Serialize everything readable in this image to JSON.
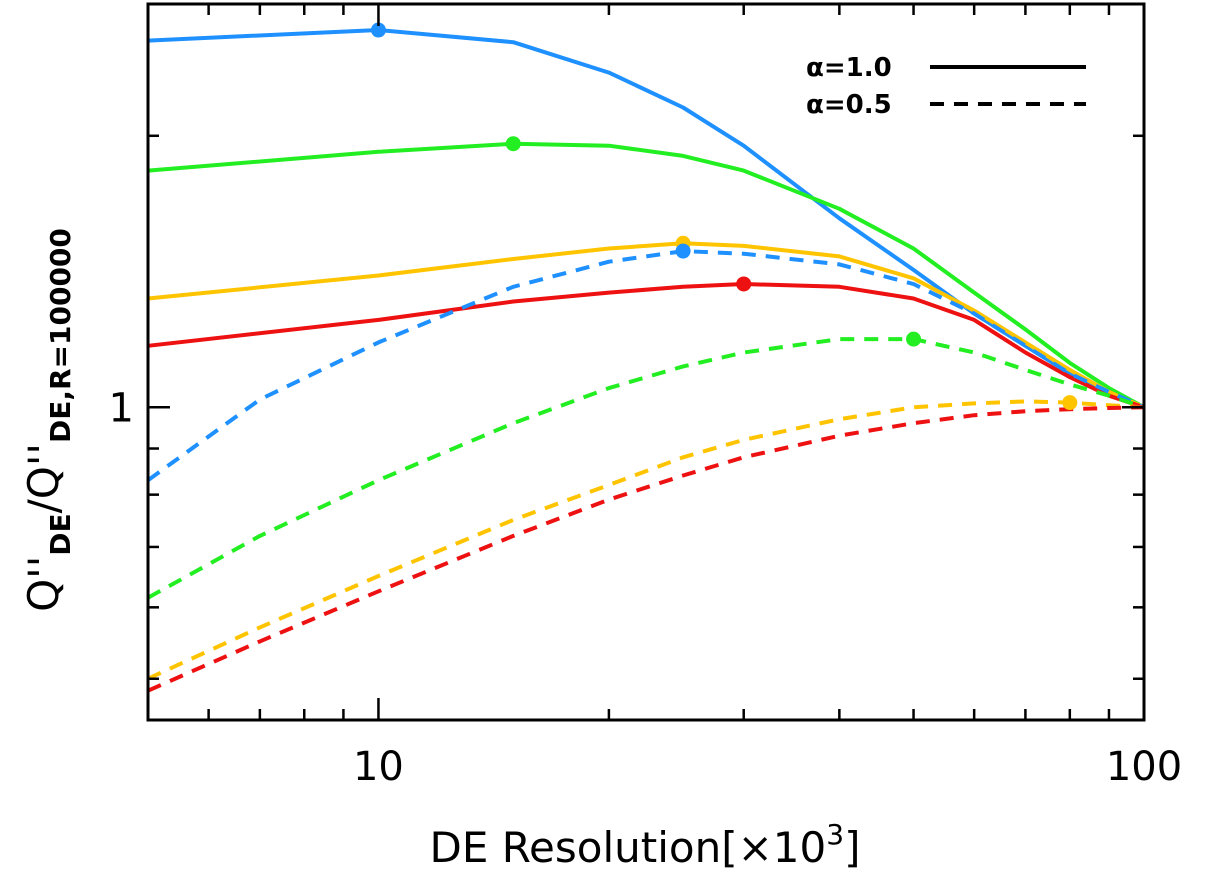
{
  "chart_data": {
    "type": "line",
    "xlabel": "DE Resolution[×10",
    "xlabel_sup": "3",
    "xlabel_end": "]",
    "ylabel_main": "Q''",
    "ylabel_sub1": "DE",
    "ylabel_mid": "/Q''",
    "ylabel_sub2": "DE,R=100000",
    "xscale": "log",
    "yscale": "log",
    "xlim": [
      5,
      100
    ],
    "ylim": [
      0.45,
      2.8
    ],
    "x_tick_labels": [
      {
        "value": 10,
        "label": "10"
      },
      {
        "value": 100,
        "label": "100"
      }
    ],
    "y_tick_labels": [
      {
        "value": 1,
        "label": "1"
      }
    ],
    "legend": {
      "placement": "top-right",
      "entries": [
        {
          "label": "α=1.0",
          "style": "solid"
        },
        {
          "label": "α=0.5",
          "style": "dashed"
        }
      ]
    },
    "series": [
      {
        "color": "#1E90FF",
        "style": "solid",
        "x": [
          5,
          10,
          15,
          20,
          25,
          30,
          40,
          50,
          60,
          70,
          80,
          90,
          100
        ],
        "y": [
          2.55,
          2.62,
          2.54,
          2.35,
          2.15,
          1.95,
          1.62,
          1.42,
          1.27,
          1.17,
          1.09,
          1.04,
          1.0
        ],
        "marker": {
          "x": 10,
          "y": 2.62
        }
      },
      {
        "color": "#22EE22",
        "style": "solid",
        "x": [
          5,
          10,
          15,
          20,
          25,
          30,
          40,
          50,
          60,
          70,
          80,
          90,
          100
        ],
        "y": [
          1.83,
          1.92,
          1.96,
          1.95,
          1.9,
          1.83,
          1.66,
          1.5,
          1.34,
          1.22,
          1.12,
          1.05,
          1.0
        ],
        "marker": {
          "x": 15,
          "y": 1.96
        }
      },
      {
        "color": "#FFC400",
        "style": "solid",
        "x": [
          5,
          10,
          15,
          20,
          25,
          30,
          40,
          50,
          60,
          70,
          80,
          90,
          100
        ],
        "y": [
          1.32,
          1.4,
          1.46,
          1.5,
          1.52,
          1.51,
          1.47,
          1.39,
          1.28,
          1.18,
          1.1,
          1.04,
          1.0
        ],
        "marker": {
          "x": 25,
          "y": 1.52
        }
      },
      {
        "color": "#EE1111",
        "style": "solid",
        "x": [
          5,
          10,
          15,
          20,
          25,
          30,
          40,
          50,
          60,
          70,
          80,
          90,
          100
        ],
        "y": [
          1.17,
          1.25,
          1.31,
          1.34,
          1.36,
          1.37,
          1.36,
          1.32,
          1.25,
          1.15,
          1.08,
          1.03,
          1.0
        ],
        "marker": {
          "x": 30,
          "y": 1.37
        }
      },
      {
        "color": "#1E90FF",
        "style": "dashed",
        "x": [
          5,
          7,
          10,
          15,
          20,
          25,
          30,
          40,
          50,
          60,
          70,
          80,
          90,
          100
        ],
        "y": [
          0.83,
          1.02,
          1.18,
          1.36,
          1.45,
          1.49,
          1.48,
          1.44,
          1.37,
          1.27,
          1.17,
          1.09,
          1.04,
          1.0
        ],
        "marker": {
          "x": 25,
          "y": 1.49
        }
      },
      {
        "color": "#22EE22",
        "style": "dashed",
        "x": [
          5,
          7,
          10,
          15,
          20,
          25,
          30,
          40,
          50,
          60,
          70,
          80,
          90,
          100
        ],
        "y": [
          0.615,
          0.72,
          0.83,
          0.96,
          1.05,
          1.11,
          1.15,
          1.19,
          1.19,
          1.15,
          1.1,
          1.06,
          1.03,
          1.0
        ],
        "marker": {
          "x": 50,
          "y": 1.19
        }
      },
      {
        "color": "#FFC400",
        "style": "dashed",
        "x": [
          5,
          7,
          10,
          15,
          20,
          25,
          30,
          40,
          50,
          60,
          70,
          80,
          90,
          100
        ],
        "y": [
          0.5,
          0.57,
          0.65,
          0.75,
          0.82,
          0.88,
          0.92,
          0.97,
          1.0,
          1.01,
          1.015,
          1.012,
          1.005,
          1.0
        ],
        "marker": {
          "x": 80,
          "y": 1.012
        }
      },
      {
        "color": "#EE1111",
        "style": "dashed",
        "x": [
          5,
          7,
          10,
          15,
          20,
          25,
          30,
          40,
          50,
          60,
          70,
          80,
          90,
          100
        ],
        "y": [
          0.485,
          0.55,
          0.625,
          0.72,
          0.79,
          0.84,
          0.88,
          0.93,
          0.96,
          0.98,
          0.99,
          0.995,
          0.998,
          1.0
        ]
      }
    ]
  }
}
